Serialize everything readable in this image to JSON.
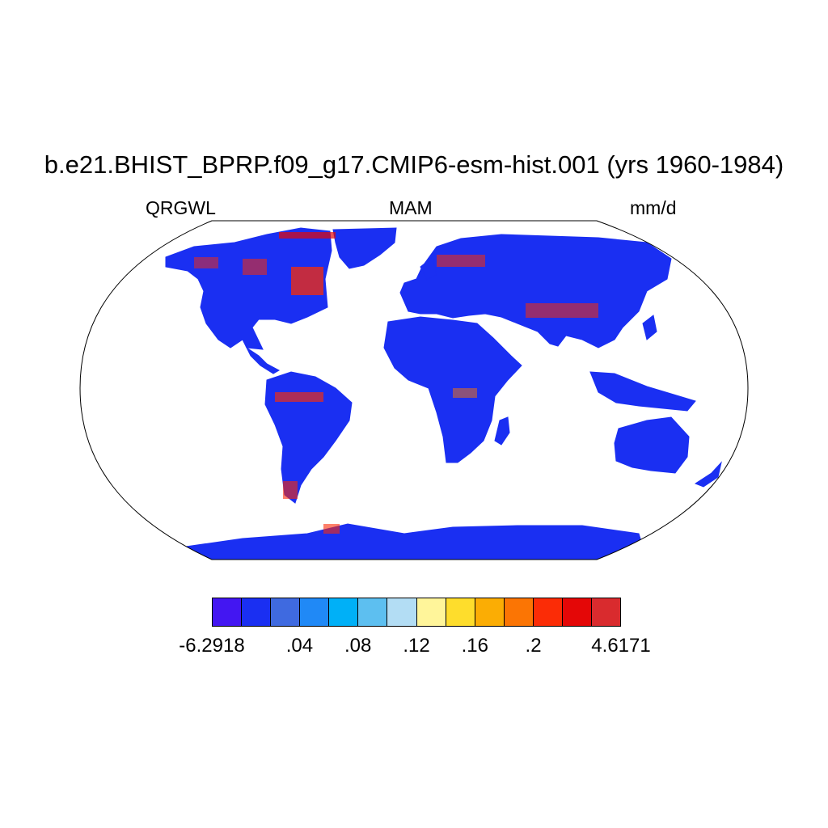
{
  "title": "b.e21.BHIST_BPRP.f09_g17.CMIP6-esm-hist.001 (yrs 1960-1984)",
  "subtitle": {
    "left": "QRGWL",
    "center": "MAM",
    "right": "mm/d"
  },
  "colorbar": {
    "colors": [
      "#4316f2",
      "#1a2ff2",
      "#3f6ae0",
      "#2089f6",
      "#00b0f7",
      "#5dbff0",
      "#b3ddf4",
      "#fff59a",
      "#fedd2c",
      "#fbad04",
      "#fb7504",
      "#fb2c06",
      "#e40707",
      "#d92b2e"
    ],
    "labels": [
      "-6.2918",
      ".04",
      ".08",
      ".12",
      ".16",
      ".2",
      "4.6171"
    ]
  },
  "map": {
    "projection": "Robinson",
    "land_fill_dominant": "#1a2ff2",
    "ocean_fill": "#ffffff"
  }
}
